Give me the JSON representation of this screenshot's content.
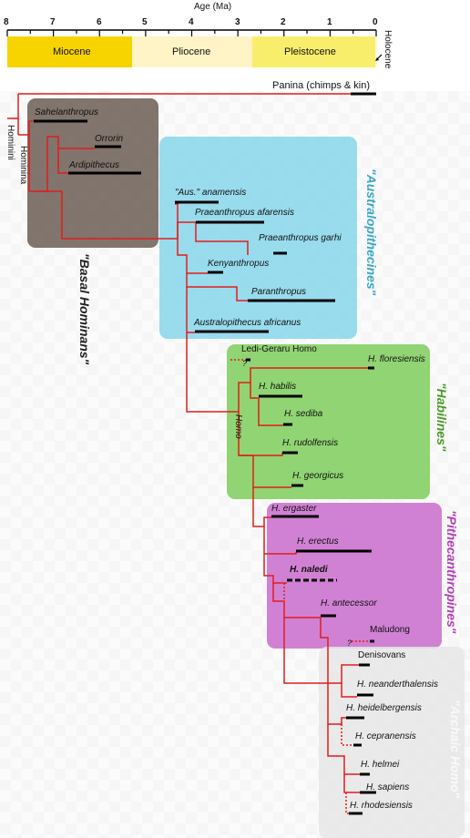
{
  "axis": {
    "title": "Age (Ma)",
    "ticks": [
      "8",
      "7",
      "6",
      "5",
      "4",
      "3",
      "2",
      "1",
      "0"
    ]
  },
  "epochs": [
    {
      "name": "Miocene",
      "color": "#f7d300"
    },
    {
      "name": "Pliocene",
      "color": "#fef4c6"
    },
    {
      "name": "Pleistocene",
      "color": "#f8ee6b"
    },
    {
      "name": "Holocene",
      "color": "#fdf9d8"
    }
  ],
  "colors": {
    "tree_line": "#e11d1d",
    "range_bar": "#000000",
    "basal_box": "#6f6259",
    "australopithecine_box": "#8ed8ec",
    "habiline_box": "#8bd26b",
    "pithecanthropine_box": "#cf7ad2",
    "late_homo_box": "#e6e6e6",
    "australopithecine_title": "#3aa7c9",
    "habiline_title": "#4a9a26",
    "pithecanthropine_title": "#b43db7"
  },
  "groups": {
    "basal": "\"Basal Hominans\"",
    "australopithecines": "\"Australopithecines\"",
    "habilines": "\"Habilines\"",
    "pithecanthropines": "\"Pithecanthropines\"",
    "late_homo": "\"Archaic Homo\""
  },
  "clade_labels": {
    "hominini": "Hominini",
    "hominina": "Hominina",
    "homo": "Homo"
  },
  "taxa": {
    "panina": "Panina (chimps & kin)",
    "sahelanthropus": "Sahelanthropus",
    "orrorin": "Orrorin",
    "ardipithecus": "Ardipithecus",
    "anamensis": "\"Aus.\" anamensis",
    "afarensis": "Praeanthropus afarensis",
    "garhi": "Praeanthropus garhi",
    "kenyanthropus": "Kenyanthropus",
    "paranthropus": "Paranthropus",
    "africanus": "Australopithecus africanus",
    "ledi_geraru": "Ledi-Geraru Homo",
    "floresiensis": "H. floresiensis",
    "habilis": "H. habilis",
    "sediba": "H. sediba",
    "rudolfensis": "H. rudolfensis",
    "georgicus": "H. georgicus",
    "ergaster": "H. ergaster",
    "erectus": "H. erectus",
    "naledi": "H. naledi",
    "antecessor": "H. antecessor",
    "maludong": "Maludong",
    "denisovans": "Denisovans",
    "neanderthalensis": "H. neanderthalensis",
    "heidelbergensis": "H. heidelbergensis",
    "cepranensis": "H. cepranensis",
    "helmei": "H. helmei",
    "sapiens": "H. sapiens",
    "rhodesiensis": "H. rhodesiensis",
    "uncertain_mark": "?"
  }
}
